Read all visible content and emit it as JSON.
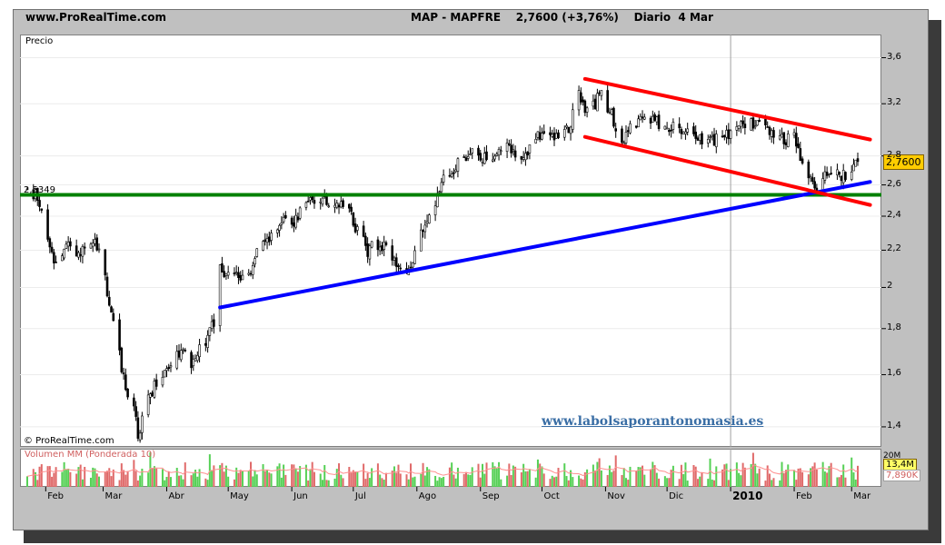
{
  "header": {
    "site": "www.ProRealTime.com",
    "instrument": "MAP - MAPFRE",
    "quote": "2,7600 (+3,76%)",
    "period": "Diario",
    "date": "4 Mar"
  },
  "labels": {
    "price_panel": "Precio",
    "copyright": "© ProRealTime.com",
    "watermark": "www.labolsaporantonomasia.es",
    "volume_panel": "Volumen MM (Ponderada 10)",
    "support_level": "2,5349",
    "last_price": "2,7600",
    "volume_last": "13,4M",
    "volume_avg": "7,890K",
    "volume_scale_top": "20M"
  },
  "colors": {
    "support_line": "#008000",
    "channel_lines": "#ff0000",
    "trend_line": "#0000ff",
    "candle_up": "#ffffff",
    "candle_down": "#000000",
    "volume_up": "#55d055",
    "volume_down": "#e06a6a",
    "volume_avg_line": "#ff9090",
    "watermark": "#3a6ea5",
    "last_price_box": "#ffcc00",
    "volume_box": "#ffff66"
  },
  "chart_data": [
    {
      "type": "line",
      "title": "MAP - MAPFRE 2,7600 (+3,76%) Diario 4 Mar",
      "series_style": "candlestick",
      "ylabel": "Precio",
      "ylim": [
        1.33,
        3.82
      ],
      "y_scale": "log",
      "y_ticks": [
        "1,4",
        "1,6",
        "1,8",
        "2",
        "2,2",
        "2,4",
        "2,6",
        "2,8",
        "3,2",
        "3,6"
      ],
      "x_ticks": [
        "Feb",
        "Mar",
        "Abr",
        "May",
        "Jun",
        "Jul",
        "Ago",
        "Sep",
        "Oct",
        "Nov",
        "Dic",
        "2010",
        "Feb",
        "Mar"
      ],
      "x_start": "2009-01-23",
      "x_end": "2010-03-04",
      "series": [
        {
          "points": [
            [
              "2009-01-23",
              2.56
            ],
            [
              "2009-01-28",
              2.52
            ],
            [
              "2009-02-02",
              2.24
            ],
            [
              "2009-02-06",
              2.12
            ],
            [
              "2009-02-11",
              2.22
            ],
            [
              "2009-02-16",
              2.16
            ],
            [
              "2009-02-20",
              2.25
            ],
            [
              "2009-02-25",
              2.27
            ],
            [
              "2009-03-02",
              2.05
            ],
            [
              "2009-03-05",
              1.85
            ],
            [
              "2009-03-09",
              1.68
            ],
            [
              "2009-03-12",
              1.55
            ],
            [
              "2009-03-16",
              1.48
            ],
            [
              "2009-03-18",
              1.38
            ],
            [
              "2009-03-20",
              1.42
            ],
            [
              "2009-03-24",
              1.52
            ],
            [
              "2009-03-27",
              1.58
            ],
            [
              "2009-03-31",
              1.62
            ],
            [
              "2009-04-03",
              1.66
            ],
            [
              "2009-04-07",
              1.7
            ],
            [
              "2009-04-10",
              1.68
            ],
            [
              "2009-04-14",
              1.64
            ],
            [
              "2009-04-17",
              1.7
            ],
            [
              "2009-04-21",
              1.75
            ],
            [
              "2009-04-24",
              1.84
            ],
            [
              "2009-04-27",
              2.1
            ],
            [
              "2009-05-01",
              2.06
            ],
            [
              "2009-05-05",
              2.1
            ],
            [
              "2009-05-08",
              2.04
            ],
            [
              "2009-05-12",
              2.1
            ],
            [
              "2009-05-15",
              2.18
            ],
            [
              "2009-05-20",
              2.26
            ],
            [
              "2009-05-25",
              2.34
            ],
            [
              "2009-05-29",
              2.38
            ],
            [
              "2009-06-02",
              2.36
            ],
            [
              "2009-06-05",
              2.44
            ],
            [
              "2009-06-10",
              2.48
            ],
            [
              "2009-06-15",
              2.52
            ],
            [
              "2009-06-19",
              2.48
            ],
            [
              "2009-06-24",
              2.5
            ],
            [
              "2009-06-29",
              2.44
            ],
            [
              "2009-07-03",
              2.3
            ],
            [
              "2009-07-08",
              2.2
            ],
            [
              "2009-07-13",
              2.24
            ],
            [
              "2009-07-17",
              2.2
            ],
            [
              "2009-07-22",
              2.12
            ],
            [
              "2009-07-27",
              2.06
            ],
            [
              "2009-07-31",
              2.2
            ],
            [
              "2009-08-05",
              2.36
            ],
            [
              "2009-08-10",
              2.5
            ],
            [
              "2009-08-14",
              2.62
            ],
            [
              "2009-08-19",
              2.7
            ],
            [
              "2009-08-24",
              2.8
            ],
            [
              "2009-08-28",
              2.82
            ],
            [
              "2009-09-02",
              2.76
            ],
            [
              "2009-09-07",
              2.82
            ],
            [
              "2009-09-11",
              2.86
            ],
            [
              "2009-09-16",
              2.84
            ],
            [
              "2009-09-21",
              2.8
            ],
            [
              "2009-09-25",
              2.86
            ],
            [
              "2009-09-30",
              2.96
            ],
            [
              "2009-10-05",
              2.96
            ],
            [
              "2009-10-09",
              2.94
            ],
            [
              "2009-10-14",
              3.0
            ],
            [
              "2009-10-19",
              3.26
            ],
            [
              "2009-10-22",
              3.12
            ],
            [
              "2009-10-27",
              3.2
            ],
            [
              "2009-10-30",
              3.3
            ],
            [
              "2009-11-04",
              3.1
            ],
            [
              "2009-11-09",
              2.92
            ],
            [
              "2009-11-13",
              3.0
            ],
            [
              "2009-11-18",
              3.08
            ],
            [
              "2009-11-23",
              3.06
            ],
            [
              "2009-11-27",
              3.04
            ],
            [
              "2009-12-02",
              3.0
            ],
            [
              "2009-12-07",
              3.02
            ],
            [
              "2009-12-11",
              2.98
            ],
            [
              "2009-12-16",
              2.94
            ],
            [
              "2009-12-21",
              2.9
            ],
            [
              "2009-12-28",
              2.94
            ],
            [
              "2010-01-04",
              3.0
            ],
            [
              "2010-01-08",
              3.06
            ],
            [
              "2010-01-13",
              3.04
            ],
            [
              "2010-01-18",
              3.02
            ],
            [
              "2010-01-22",
              2.94
            ],
            [
              "2010-01-27",
              2.92
            ],
            [
              "2010-02-01",
              2.94
            ],
            [
              "2010-02-04",
              2.78
            ],
            [
              "2010-02-08",
              2.64
            ],
            [
              "2010-02-12",
              2.58
            ],
            [
              "2010-02-17",
              2.66
            ],
            [
              "2010-02-22",
              2.68
            ],
            [
              "2010-02-26",
              2.66
            ],
            [
              "2010-03-02",
              2.7
            ],
            [
              "2010-03-04",
              2.76
            ]
          ]
        }
      ],
      "annotations": [
        {
          "type": "horizontal_line",
          "color": "green",
          "y": 2.5349,
          "label": "2,5349"
        },
        {
          "type": "trend_line",
          "color": "blue",
          "from": [
            "2009-04-27",
            1.9
          ],
          "to": [
            "2010-03-10",
            2.62
          ]
        },
        {
          "type": "channel_upper",
          "color": "red",
          "from": [
            "2009-10-22",
            3.41
          ],
          "to": [
            "2010-03-10",
            2.92
          ]
        },
        {
          "type": "channel_lower",
          "color": "red",
          "from": [
            "2009-10-22",
            2.94
          ],
          "to": [
            "2010-03-10",
            2.47
          ]
        }
      ]
    },
    {
      "type": "bar",
      "title": "Volumen MM (Ponderada 10)",
      "ylim": [
        0,
        20
      ],
      "y_unit": "M",
      "last_value": 13.4,
      "moving_average": 7.89,
      "moving_average_unit": "K"
    }
  ]
}
